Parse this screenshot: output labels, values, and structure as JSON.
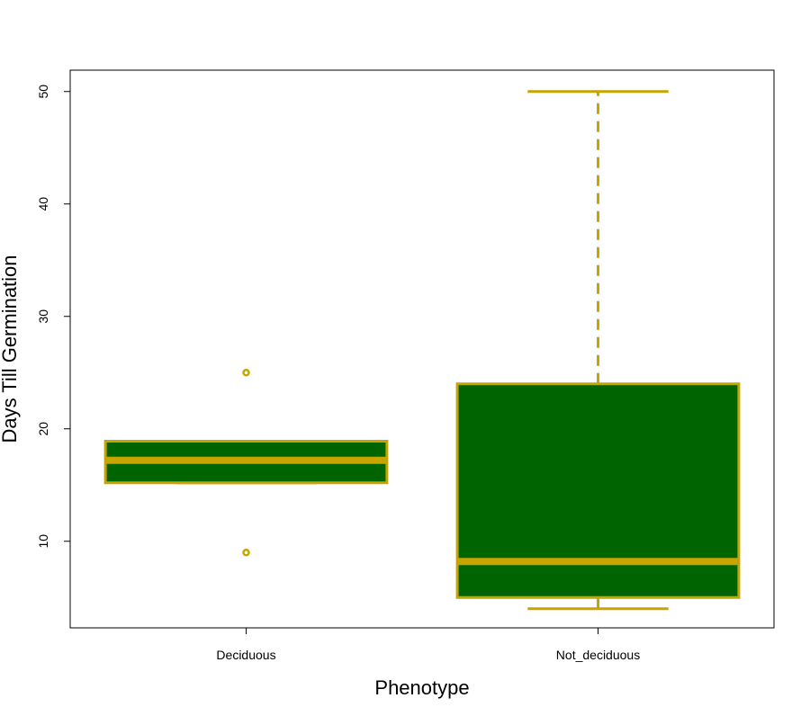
{
  "chart_data": {
    "type": "boxplot",
    "title": "",
    "xlabel": "Phenotype",
    "ylabel": "Days Till Germination",
    "categories": [
      "Deciduous",
      "Not_deciduous"
    ],
    "ylim": [
      2.3,
      51.9
    ],
    "yticks": [
      10,
      20,
      30,
      40,
      50
    ],
    "boxes": [
      {
        "category": "Deciduous",
        "whisker_low": 15.2,
        "q1": 15.2,
        "median": 17.2,
        "q3": 18.9,
        "whisker_high": 18.9,
        "outliers": [
          25,
          9
        ]
      },
      {
        "category": "Not_deciduous",
        "whisker_low": 4,
        "q1": 5,
        "median": 8.2,
        "q3": 24,
        "whisker_high": 50,
        "outliers": []
      }
    ],
    "colors": {
      "box_fill": "#006400",
      "box_border": "#C8A400"
    },
    "grid": false,
    "legend": "none"
  }
}
